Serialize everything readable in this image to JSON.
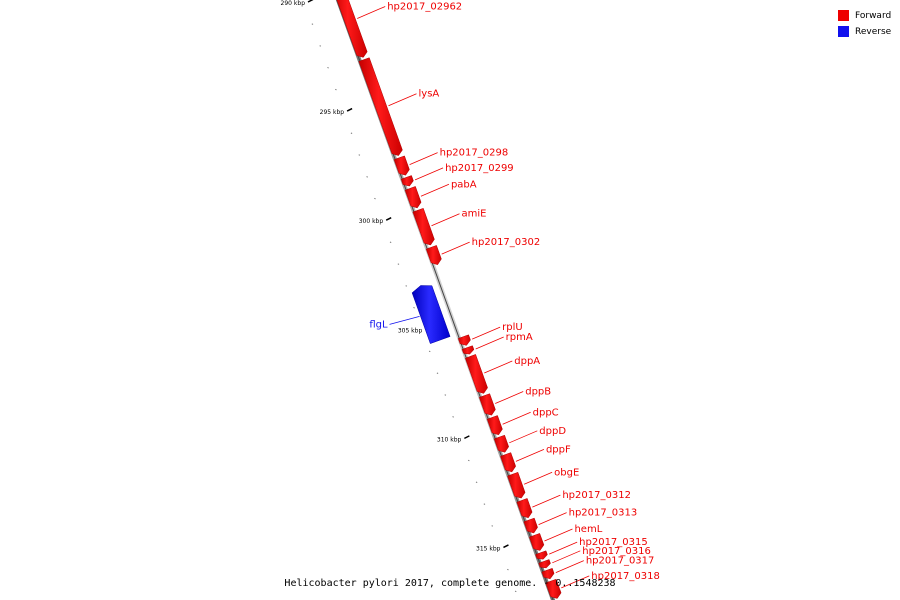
{
  "legend": {
    "forward": {
      "label": "Forward",
      "color": "#ee0000"
    },
    "reverse": {
      "label": "Reverse",
      "color": "#1111ee"
    }
  },
  "caption": "Helicobacter pylori 2017, complete genome. - 0..1548238",
  "axis_ticks": [
    {
      "kbp": 290,
      "label": "290 kbp"
    },
    {
      "kbp": 295,
      "label": "295 kbp"
    },
    {
      "kbp": 300,
      "label": "300 kbp"
    },
    {
      "kbp": 305,
      "label": "305 kbp"
    },
    {
      "kbp": 310,
      "label": "310 kbp"
    },
    {
      "kbp": 315,
      "label": "315 kbp"
    }
  ],
  "genes": [
    {
      "name": "hp2017_02962",
      "strand": "forward",
      "start_kbp": 289.3,
      "end_kbp": 292.7
    },
    {
      "name": "lysA",
      "strand": "forward",
      "start_kbp": 292.8,
      "end_kbp": 297.2
    },
    {
      "name": "hp2017_0298",
      "strand": "forward",
      "start_kbp": 297.3,
      "end_kbp": 298.1
    },
    {
      "name": "hp2017_0299",
      "strand": "forward",
      "start_kbp": 298.2,
      "end_kbp": 298.6
    },
    {
      "name": "pabA",
      "strand": "forward",
      "start_kbp": 298.7,
      "end_kbp": 299.6
    },
    {
      "name": "amiE",
      "strand": "forward",
      "start_kbp": 299.7,
      "end_kbp": 301.3
    },
    {
      "name": "hp2017_0302",
      "strand": "forward",
      "start_kbp": 301.4,
      "end_kbp": 302.2
    },
    {
      "name": "flgL",
      "strand": "reverse",
      "start_kbp": 302.8,
      "end_kbp": 305.3
    },
    {
      "name": "rplU",
      "strand": "forward",
      "start_kbp": 305.5,
      "end_kbp": 305.9
    },
    {
      "name": "rpmA",
      "strand": "forward",
      "start_kbp": 306.0,
      "end_kbp": 306.3
    },
    {
      "name": "dppA",
      "strand": "forward",
      "start_kbp": 306.4,
      "end_kbp": 308.1
    },
    {
      "name": "dppB",
      "strand": "forward",
      "start_kbp": 308.2,
      "end_kbp": 309.1
    },
    {
      "name": "dppC",
      "strand": "forward",
      "start_kbp": 309.2,
      "end_kbp": 310.0
    },
    {
      "name": "dppD",
      "strand": "forward",
      "start_kbp": 310.1,
      "end_kbp": 310.8
    },
    {
      "name": "dppF",
      "strand": "forward",
      "start_kbp": 310.9,
      "end_kbp": 311.7
    },
    {
      "name": "obgE",
      "strand": "forward",
      "start_kbp": 311.8,
      "end_kbp": 312.9
    },
    {
      "name": "hp2017_0312",
      "strand": "forward",
      "start_kbp": 313.0,
      "end_kbp": 313.8
    },
    {
      "name": "hp2017_0313",
      "strand": "forward",
      "start_kbp": 313.9,
      "end_kbp": 314.5
    },
    {
      "name": "hemL",
      "strand": "forward",
      "start_kbp": 314.6,
      "end_kbp": 315.3
    },
    {
      "name": "hp2017_0315",
      "strand": "forward",
      "start_kbp": 315.4,
      "end_kbp": 315.7
    },
    {
      "name": "hp2017_0316",
      "strand": "forward",
      "start_kbp": 315.8,
      "end_kbp": 316.1
    },
    {
      "name": "hp2017_0317",
      "strand": "forward",
      "start_kbp": 316.2,
      "end_kbp": 316.6
    },
    {
      "name": "hp2017_0318",
      "strand": "forward",
      "start_kbp": 316.7,
      "end_kbp": 317.5
    }
  ]
}
